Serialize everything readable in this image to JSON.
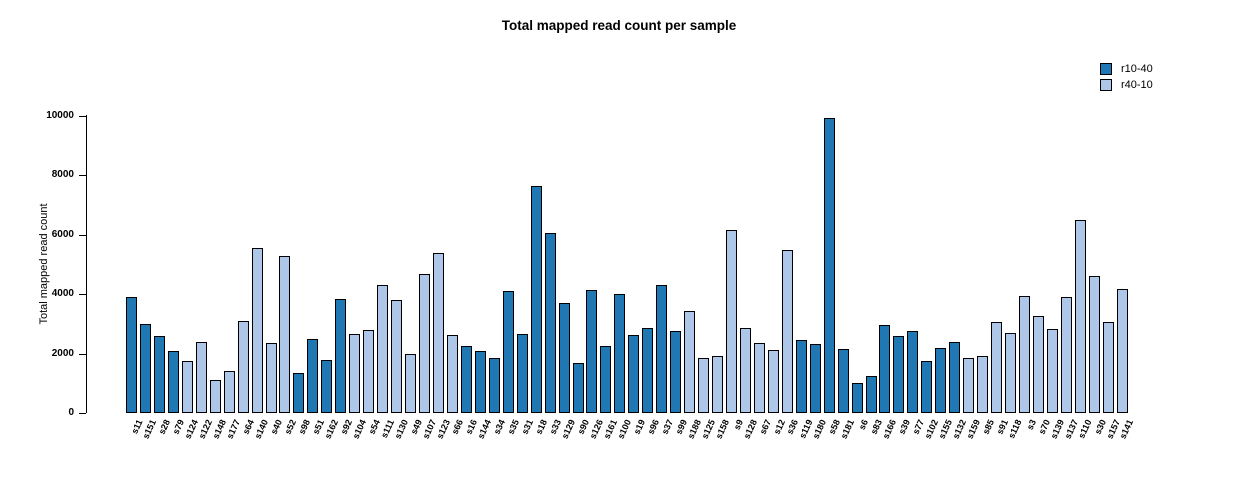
{
  "title": "Total mapped read count per sample",
  "y_axis": {
    "label": "Total mapped read count",
    "ticks": [
      0,
      2000,
      4000,
      6000,
      8000,
      10000
    ]
  },
  "legend": {
    "position": "top-right",
    "items": [
      {
        "label": "r10-40",
        "color": "#1f77b4"
      },
      {
        "label": "r40-10",
        "color": "#aec7e8"
      }
    ]
  },
  "chart_data": {
    "type": "bar",
    "title": "Total mapped read count per sample",
    "xlabel": "",
    "ylabel": "Total mapped read count",
    "ylim": [
      0,
      10000
    ],
    "grid": false,
    "legend_position": "top-right",
    "groups": {
      "r10-40": "#1f77b4",
      "r40-10": "#aec7e8"
    },
    "bar_border_color": "#000000",
    "bars": [
      {
        "sample": "s11",
        "value": 3900,
        "group": "r10-40"
      },
      {
        "sample": "s151",
        "value": 3000,
        "group": "r10-40"
      },
      {
        "sample": "s28",
        "value": 2600,
        "group": "r10-40"
      },
      {
        "sample": "s79",
        "value": 2100,
        "group": "r10-40"
      },
      {
        "sample": "s124",
        "value": 1750,
        "group": "r40-10"
      },
      {
        "sample": "s122",
        "value": 2400,
        "group": "r40-10"
      },
      {
        "sample": "s148",
        "value": 1100,
        "group": "r40-10"
      },
      {
        "sample": "s177",
        "value": 1400,
        "group": "r40-10"
      },
      {
        "sample": "s64",
        "value": 3100,
        "group": "r40-10"
      },
      {
        "sample": "s140",
        "value": 5550,
        "group": "r40-10"
      },
      {
        "sample": "s40",
        "value": 2350,
        "group": "r40-10"
      },
      {
        "sample": "s52",
        "value": 5300,
        "group": "r40-10"
      },
      {
        "sample": "s98",
        "value": 1350,
        "group": "r10-40"
      },
      {
        "sample": "s51",
        "value": 2480,
        "group": "r10-40"
      },
      {
        "sample": "s162",
        "value": 1800,
        "group": "r10-40"
      },
      {
        "sample": "s92",
        "value": 3850,
        "group": "r10-40"
      },
      {
        "sample": "s104",
        "value": 2650,
        "group": "r40-10"
      },
      {
        "sample": "s54",
        "value": 2800,
        "group": "r40-10"
      },
      {
        "sample": "s111",
        "value": 4300,
        "group": "r40-10"
      },
      {
        "sample": "s130",
        "value": 3820,
        "group": "r40-10"
      },
      {
        "sample": "s49",
        "value": 2000,
        "group": "r40-10"
      },
      {
        "sample": "s107",
        "value": 4680,
        "group": "r40-10"
      },
      {
        "sample": "s123",
        "value": 5400,
        "group": "r40-10"
      },
      {
        "sample": "s66",
        "value": 2630,
        "group": "r40-10"
      },
      {
        "sample": "s16",
        "value": 2250,
        "group": "r10-40"
      },
      {
        "sample": "s144",
        "value": 2100,
        "group": "r10-40"
      },
      {
        "sample": "s34",
        "value": 1850,
        "group": "r10-40"
      },
      {
        "sample": "s35",
        "value": 4100,
        "group": "r10-40"
      },
      {
        "sample": "s31",
        "value": 2670,
        "group": "r10-40"
      },
      {
        "sample": "s18",
        "value": 7650,
        "group": "r10-40"
      },
      {
        "sample": "s33",
        "value": 6050,
        "group": "r10-40"
      },
      {
        "sample": "s129",
        "value": 3720,
        "group": "r10-40"
      },
      {
        "sample": "s90",
        "value": 1700,
        "group": "r10-40"
      },
      {
        "sample": "s126",
        "value": 4130,
        "group": "r10-40"
      },
      {
        "sample": "s161",
        "value": 2250,
        "group": "r10-40"
      },
      {
        "sample": "s100",
        "value": 4000,
        "group": "r10-40"
      },
      {
        "sample": "s19",
        "value": 2640,
        "group": "r10-40"
      },
      {
        "sample": "s96",
        "value": 2850,
        "group": "r10-40"
      },
      {
        "sample": "s37",
        "value": 4300,
        "group": "r10-40"
      },
      {
        "sample": "s99",
        "value": 2750,
        "group": "r10-40"
      },
      {
        "sample": "s188",
        "value": 3450,
        "group": "r40-10"
      },
      {
        "sample": "s125",
        "value": 1850,
        "group": "r40-10"
      },
      {
        "sample": "s158",
        "value": 1920,
        "group": "r40-10"
      },
      {
        "sample": "s9",
        "value": 6170,
        "group": "r40-10"
      },
      {
        "sample": "s128",
        "value": 2850,
        "group": "r40-10"
      },
      {
        "sample": "s67",
        "value": 2360,
        "group": "r40-10"
      },
      {
        "sample": "s12",
        "value": 2110,
        "group": "r40-10"
      },
      {
        "sample": "s36",
        "value": 5490,
        "group": "r40-10"
      },
      {
        "sample": "s119",
        "value": 2470,
        "group": "r10-40"
      },
      {
        "sample": "s180",
        "value": 2340,
        "group": "r10-40"
      },
      {
        "sample": "s58",
        "value": 9950,
        "group": "r10-40"
      },
      {
        "sample": "s181",
        "value": 2150,
        "group": "r10-40"
      },
      {
        "sample": "s6",
        "value": 1000,
        "group": "r10-40"
      },
      {
        "sample": "s83",
        "value": 1260,
        "group": "r10-40"
      },
      {
        "sample": "s166",
        "value": 2970,
        "group": "r10-40"
      },
      {
        "sample": "s39",
        "value": 2600,
        "group": "r10-40"
      },
      {
        "sample": "s77",
        "value": 2760,
        "group": "r10-40"
      },
      {
        "sample": "s102",
        "value": 1750,
        "group": "r10-40"
      },
      {
        "sample": "s155",
        "value": 2180,
        "group": "r10-40"
      },
      {
        "sample": "s132",
        "value": 2400,
        "group": "r10-40"
      },
      {
        "sample": "s159",
        "value": 1850,
        "group": "r40-10"
      },
      {
        "sample": "s85",
        "value": 1930,
        "group": "r40-10"
      },
      {
        "sample": "s91",
        "value": 3050,
        "group": "r40-10"
      },
      {
        "sample": "s118",
        "value": 2710,
        "group": "r40-10"
      },
      {
        "sample": "s3",
        "value": 3950,
        "group": "r40-10"
      },
      {
        "sample": "s70",
        "value": 3250,
        "group": "r40-10"
      },
      {
        "sample": "s139",
        "value": 2820,
        "group": "r40-10"
      },
      {
        "sample": "s137",
        "value": 3910,
        "group": "r40-10"
      },
      {
        "sample": "s110",
        "value": 6500,
        "group": "r40-10"
      },
      {
        "sample": "s30",
        "value": 4600,
        "group": "r40-10"
      },
      {
        "sample": "s157",
        "value": 3060,
        "group": "r40-10"
      },
      {
        "sample": "s141",
        "value": 4160,
        "group": "r40-10"
      }
    ]
  }
}
